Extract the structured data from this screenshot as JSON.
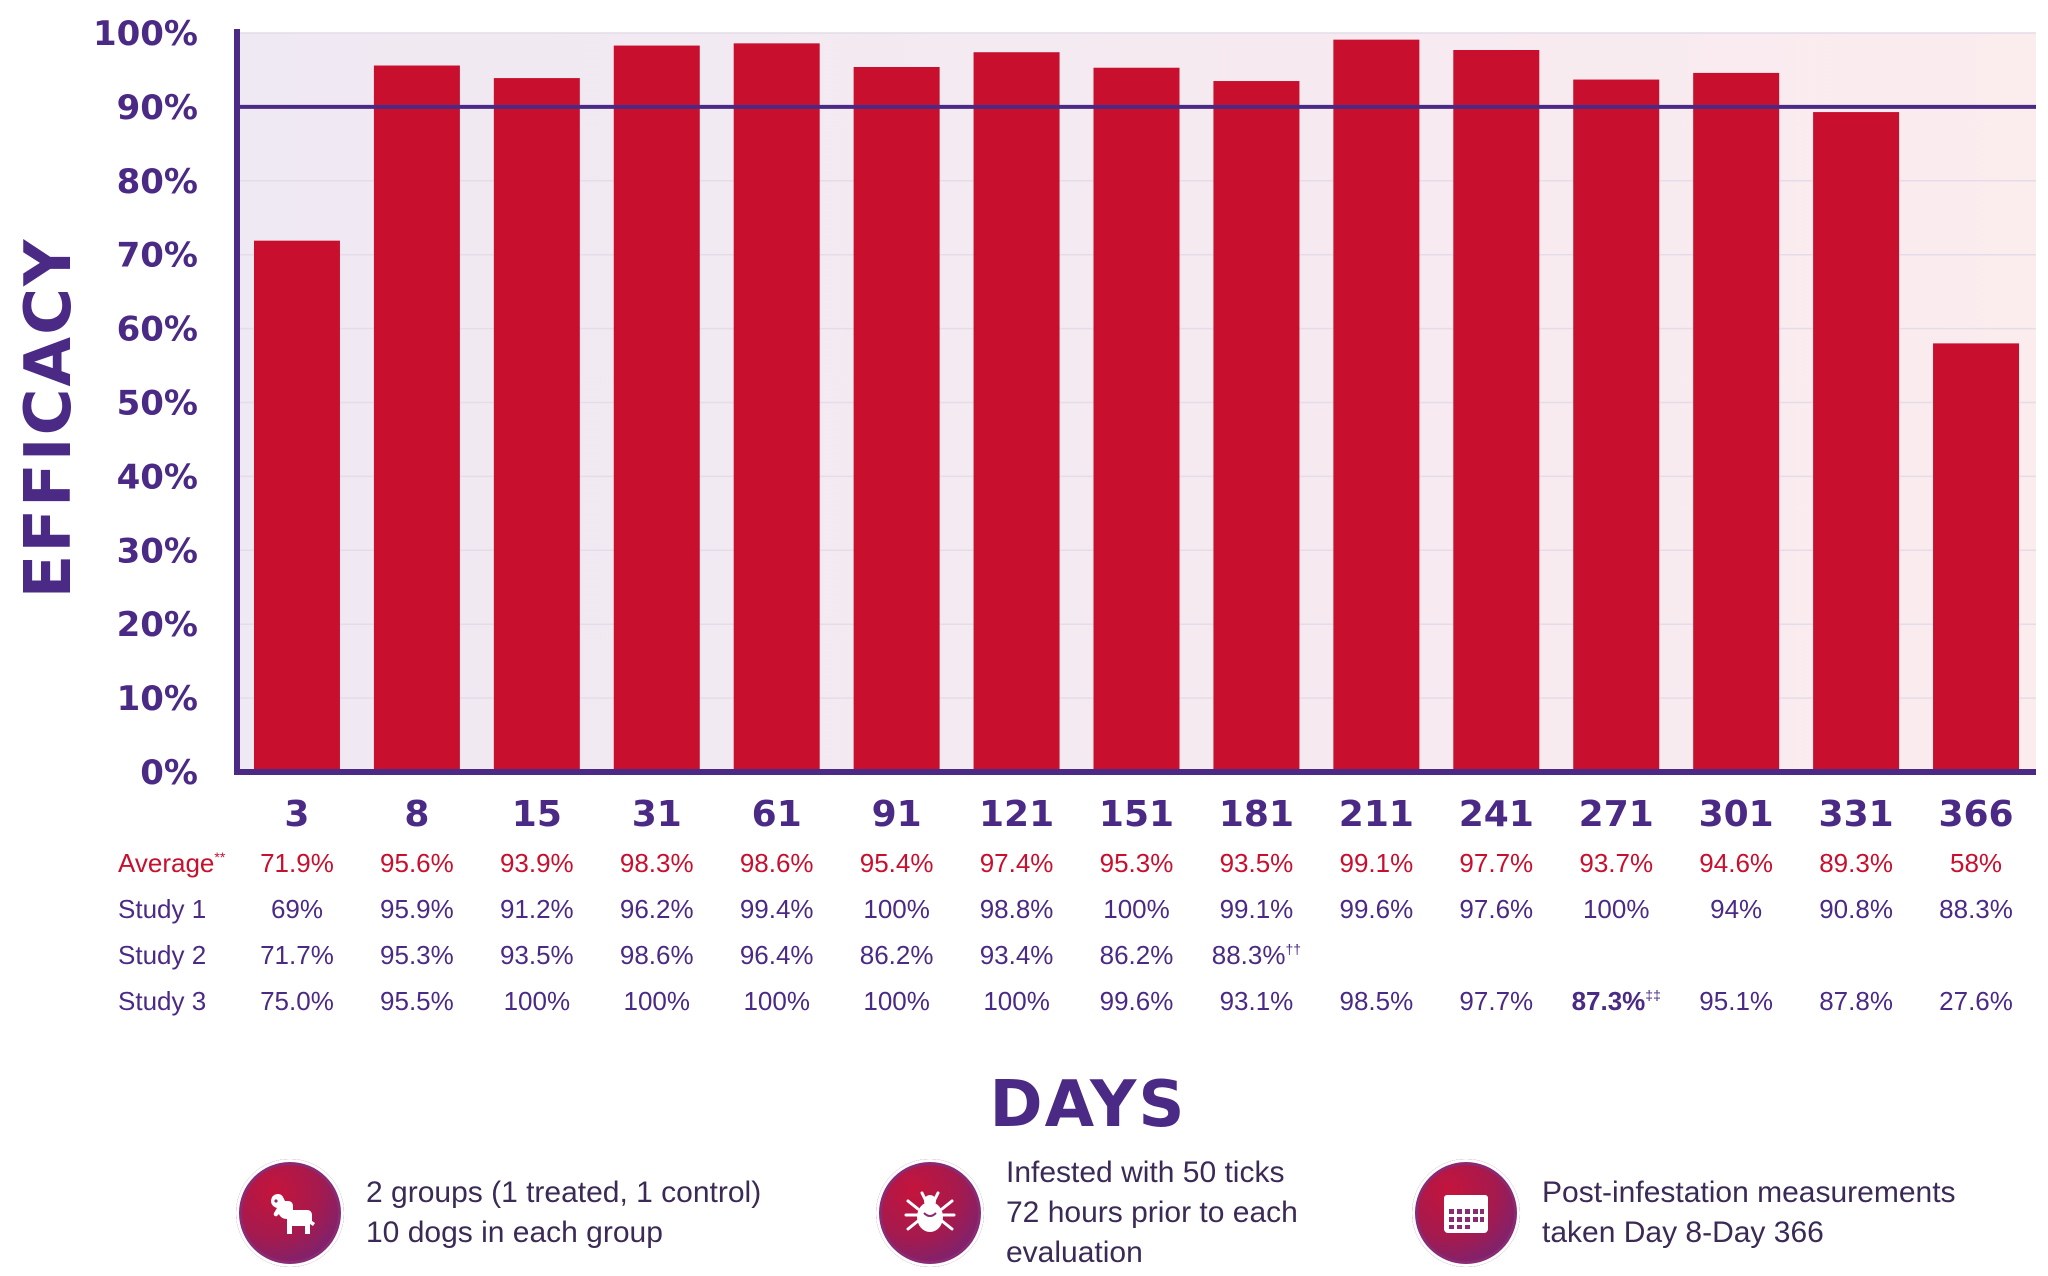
{
  "chart_data": {
    "type": "bar",
    "ylabel": "EFFICACY",
    "xlabel": "DAYS",
    "ylim": [
      0,
      100
    ],
    "yticks": [
      "0%",
      "10%",
      "20%",
      "30%",
      "40%",
      "50%",
      "60%",
      "70%",
      "80%",
      "90%",
      "100%"
    ],
    "reference_line": 90,
    "categories": [
      "3",
      "8",
      "15",
      "31",
      "61",
      "91",
      "121",
      "151",
      "181",
      "211",
      "241",
      "271",
      "301",
      "331",
      "366"
    ],
    "values": [
      71.9,
      95.6,
      93.9,
      98.3,
      98.6,
      95.4,
      97.4,
      95.3,
      93.5,
      99.1,
      97.7,
      93.7,
      94.6,
      89.3,
      58
    ],
    "bar_color": "#c8102e",
    "axis_color": "#4b2a85",
    "table": [
      {
        "label": "Average",
        "sup": "**",
        "color": "#c8102e",
        "cells": [
          "71.9%",
          "95.6%",
          "93.9%",
          "98.3%",
          "98.6%",
          "95.4%",
          "97.4%",
          "95.3%",
          "93.5%",
          "99.1%",
          "97.7%",
          "93.7%",
          "94.6%",
          "89.3%",
          "58%"
        ]
      },
      {
        "label": "Study 1",
        "sup": "",
        "color": "#4b2a85",
        "cells": [
          "69%",
          "95.9%",
          "91.2%",
          "96.2%",
          "99.4%",
          "100%",
          "98.8%",
          "100%",
          "99.1%",
          "99.6%",
          "97.6%",
          "100%",
          "94%",
          "90.8%",
          "88.3%"
        ]
      },
      {
        "label": "Study 2",
        "sup": "",
        "color": "#4b2a85",
        "cells": [
          "71.7%",
          "95.3%",
          "93.5%",
          "98.6%",
          "96.4%",
          "86.2%",
          "93.4%",
          "86.2%",
          "88.3%",
          "",
          "",
          "",
          "",
          "",
          ""
        ],
        "cell_sups": [
          "",
          "",
          "",
          "",
          "",
          "",
          "",
          "",
          "††",
          "",
          "",
          "",
          "",
          "",
          ""
        ]
      },
      {
        "label": "Study 3",
        "sup": "",
        "color": "#4b2a85",
        "cells": [
          "75.0%",
          "95.5%",
          "100%",
          "100%",
          "100%",
          "100%",
          "100%",
          "99.6%",
          "93.1%",
          "98.5%",
          "97.7%",
          "87.3%",
          "95.1%",
          "87.8%",
          "27.6%"
        ],
        "cell_sups": [
          "",
          "",
          "",
          "",
          "",
          "",
          "",
          "",
          "",
          "",
          "",
          "‡‡",
          "",
          "",
          ""
        ],
        "bold_index": 11
      }
    ]
  },
  "footer": [
    {
      "icon": "dog-icon",
      "lines": [
        "2 groups (1 treated, 1 control)",
        "10 dogs in each group"
      ]
    },
    {
      "icon": "tick-icon",
      "lines": [
        "Infested with 50 ticks",
        "72 hours prior to each",
        "evaluation"
      ]
    },
    {
      "icon": "calendar-icon",
      "lines": [
        "Post-infestation measurements",
        "taken Day 8-Day 366"
      ]
    }
  ]
}
